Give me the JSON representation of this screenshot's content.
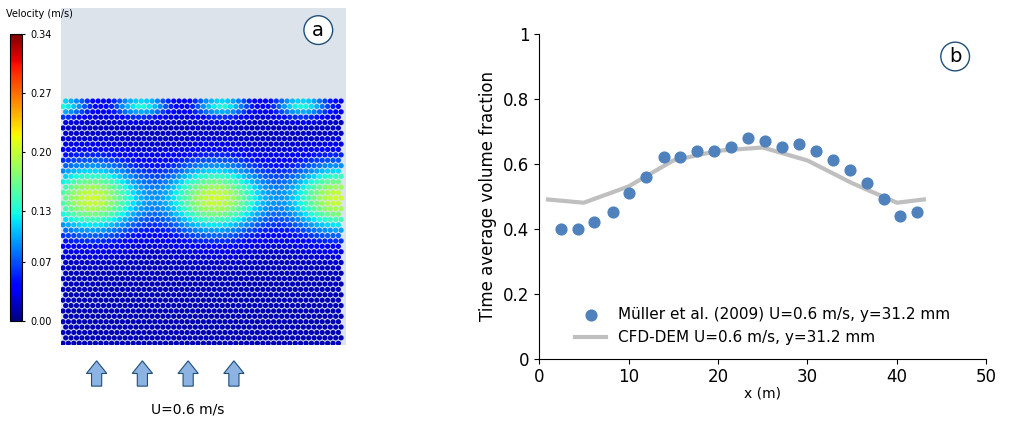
{
  "chart_data": [
    {
      "type": "particle_bed",
      "label": "a",
      "colorbar_title": "Velocity (m/s)",
      "colorbar_range": [
        0,
        0.34
      ],
      "colorbar_ticks": [
        {
          "value": 0,
          "label": "0.00"
        },
        0.07,
        0.13,
        {
          "value": 0.2,
          "label": "0.20"
        },
        0.27,
        0.34
      ],
      "annotation": "U=0.6 m/s"
    },
    {
      "type": "scatter_line",
      "label": "b",
      "xlabel": "x (m)",
      "ylabel": "Time average volume fraction",
      "xlim": [
        0,
        50
      ],
      "xticks": [
        0,
        10,
        20,
        30,
        40,
        50
      ],
      "ylim": [
        0,
        1
      ],
      "yticks": [
        0,
        0.2,
        0.4,
        0.6,
        0.8,
        1
      ],
      "legend": "lower center",
      "series": [
        {
          "name": "Müller et al. (2009) U=0.6 m/s, y=31.2 mm",
          "type": "scatter",
          "color": "#4f81bd",
          "marker": "o",
          "x": [
            2.5,
            4.4,
            6.2,
            8.3,
            10.1,
            12.0,
            14.0,
            15.8,
            17.7,
            19.6,
            21.5,
            23.4,
            25.3,
            27.2,
            29.0,
            30.9,
            32.9,
            34.7,
            36.6,
            38.5,
            40.3,
            42.2
          ],
          "values": [
            0.4,
            0.4,
            0.42,
            0.45,
            0.51,
            0.56,
            0.62,
            0.62,
            0.64,
            0.64,
            0.65,
            0.68,
            0.67,
            0.65,
            0.66,
            0.64,
            0.61,
            0.58,
            0.54,
            0.49,
            0.44,
            0.45
          ]
        },
        {
          "name": "CFD-DEM U=0.6 m/s, y=31.2 mm",
          "type": "line",
          "color": "#bfbfbf",
          "line_style": "solid",
          "x": [
            1,
            5,
            10,
            15,
            20,
            25,
            30,
            35,
            40,
            43
          ],
          "values": [
            0.49,
            0.48,
            0.53,
            0.61,
            0.64,
            0.65,
            0.61,
            0.54,
            0.48,
            0.49
          ]
        }
      ]
    }
  ]
}
